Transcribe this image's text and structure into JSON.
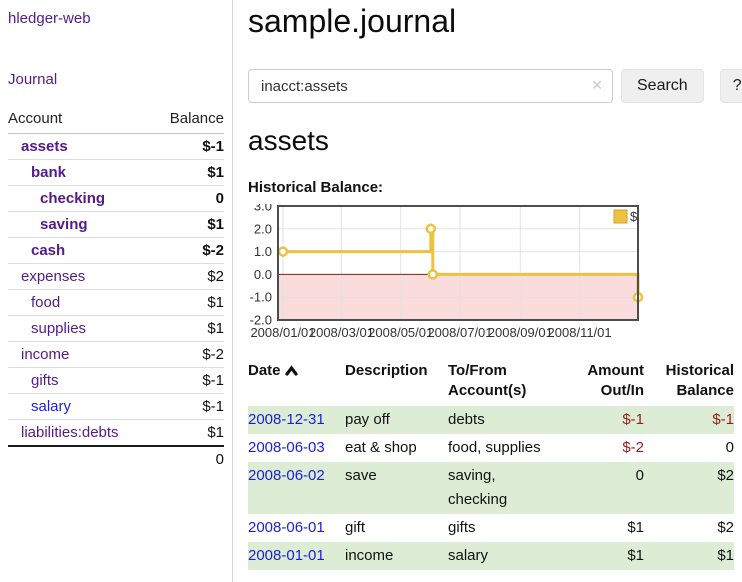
{
  "colors": {
    "purple": "#551a8b",
    "blue": "#1c1ce0",
    "neg_strong": "#9c1a1a",
    "neg_soft": "#c5827f",
    "stripe_green": "#ddedd5",
    "chart_line": "#edc240",
    "chart_marker_fill": "#ffffff",
    "chart_negative_fill": "#fbdcdc",
    "chart_zero_line": "#8c1a1a",
    "chart_grid": "#e2e2e2",
    "chart_frame": "#4d4d4d"
  },
  "sidebar": {
    "brand": "hledger-web",
    "journal_label": "Journal",
    "table": {
      "col_account": "Account",
      "col_balance": "Balance",
      "rows": [
        {
          "account": "assets",
          "balance": "$-1",
          "level": 1,
          "bold": true,
          "balance_style": "neg_strong",
          "link_style": "purple"
        },
        {
          "account": "bank",
          "balance": "$1",
          "level": 2,
          "bold": true,
          "balance_style": "normal",
          "link_style": "purple"
        },
        {
          "account": "checking",
          "balance": "0",
          "level": 3,
          "bold": true,
          "balance_style": "normal",
          "link_style": "purple"
        },
        {
          "account": "saving",
          "balance": "$1",
          "level": 3,
          "bold": true,
          "balance_style": "normal",
          "link_style": "purple"
        },
        {
          "account": "cash",
          "balance": "$-2",
          "level": 2,
          "bold": true,
          "balance_style": "neg_strong",
          "link_style": "purple"
        },
        {
          "account": "expenses",
          "balance": "$2",
          "level": 1,
          "bold": false,
          "balance_style": "normal",
          "link_style": "purple"
        },
        {
          "account": "food",
          "balance": "$1",
          "level": 2,
          "bold": false,
          "balance_style": "normal",
          "link_style": "purple"
        },
        {
          "account": "supplies",
          "balance": "$1",
          "level": 2,
          "bold": false,
          "balance_style": "normal",
          "link_style": "purple"
        },
        {
          "account": "income",
          "balance": "$-2",
          "level": 1,
          "bold": false,
          "balance_style": "neg_soft",
          "link_style": "purple"
        },
        {
          "account": "gifts",
          "balance": "$-1",
          "level": 2,
          "bold": false,
          "balance_style": "neg_soft",
          "link_style": "purple"
        },
        {
          "account": "salary",
          "balance": "$-1",
          "level": 2,
          "bold": false,
          "balance_style": "neg_soft",
          "link_style": "blue"
        },
        {
          "account": "liabilities:debts",
          "balance": "$1",
          "level": 1,
          "bold": false,
          "balance_style": "normal",
          "link_style": "purple"
        }
      ],
      "total": "0"
    }
  },
  "main": {
    "title": "sample.journal",
    "search": {
      "value": "inacct:assets",
      "clear_icon": "✕",
      "button_label": "Search",
      "help_label": "?"
    },
    "account_heading": "assets",
    "chart_heading": "Historical Balance:"
  },
  "chart_data": {
    "type": "line",
    "step": true,
    "title": "Historical Balance:",
    "series": [
      {
        "name": "$",
        "color": "#edc240",
        "points": [
          [
            "2008/01/01",
            1.0
          ],
          [
            "2008/06/01",
            2.0
          ],
          [
            "2008/06/03",
            0.0
          ],
          [
            "2008/12/31",
            -1.0
          ]
        ]
      }
    ],
    "ylim": [
      -2.0,
      3.0
    ],
    "yticks": [
      3.0,
      2.0,
      1.0,
      0.0,
      -1.0,
      -2.0
    ],
    "xticks": [
      "2008/01/01",
      "2008/03/01",
      "2008/05/01",
      "2008/07/01",
      "2008/09/01",
      "2008/11/01"
    ],
    "grid": true,
    "legend_position": "top-right",
    "negative_region_highlighted": true
  },
  "register": {
    "headers": {
      "date": "Date",
      "description": "Description",
      "accounts": "To/From\nAccount(s)",
      "amount": "Amount\nOut/In",
      "balance": "Historical\nBalance"
    },
    "rows": [
      {
        "date": "2008-12-31",
        "description": "pay off",
        "accounts": "debts",
        "amount": "$-1",
        "balance": "$-1"
      },
      {
        "date": "2008-06-03",
        "description": "eat & shop",
        "accounts": "food, supplies",
        "amount": "$-2",
        "balance": "0"
      },
      {
        "date": "2008-06-02",
        "description": "save",
        "accounts": "saving,\nchecking",
        "amount": "0",
        "balance": "$2"
      },
      {
        "date": "2008-06-01",
        "description": "gift",
        "accounts": "gifts",
        "amount": "$1",
        "balance": "$2"
      },
      {
        "date": "2008-01-01",
        "description": "income",
        "accounts": "salary",
        "amount": "$1",
        "balance": "$1"
      }
    ]
  }
}
